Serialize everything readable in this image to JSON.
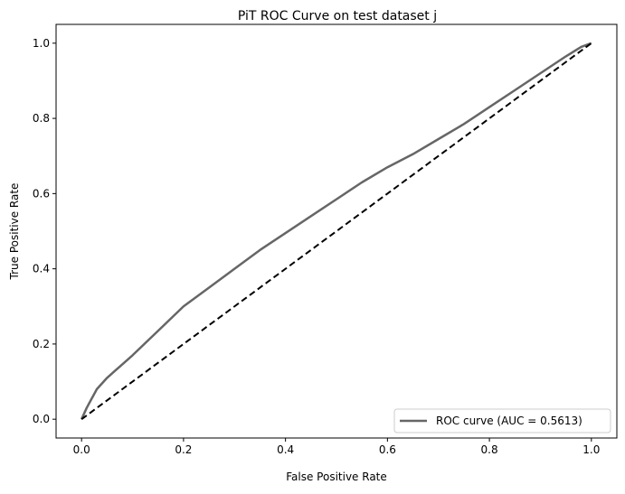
{
  "chart_data": {
    "type": "line",
    "title": "PiT ROC Curve on test dataset j",
    "xlabel": "False Positive Rate",
    "ylabel": "True Positive Rate",
    "xlim": [
      -0.05,
      1.05
    ],
    "ylim": [
      -0.05,
      1.05
    ],
    "xticks": [
      0.0,
      0.2,
      0.4,
      0.6,
      0.8,
      1.0
    ],
    "yticks": [
      0.0,
      0.2,
      0.4,
      0.6,
      0.8,
      1.0
    ],
    "xtick_labels": [
      "0.0",
      "0.2",
      "0.4",
      "0.6",
      "0.8",
      "1.0"
    ],
    "ytick_labels": [
      "0.0",
      "0.2",
      "0.4",
      "0.6",
      "0.8",
      "1.0"
    ],
    "grid": false,
    "legend": {
      "position": "lower-right"
    },
    "series": [
      {
        "name": "ROC curve (AUC = 0.5613)",
        "color": "#666666",
        "style": "solid",
        "x": [
          0.0,
          0.01,
          0.02,
          0.03,
          0.05,
          0.075,
          0.1,
          0.15,
          0.2,
          0.25,
          0.3,
          0.35,
          0.4,
          0.45,
          0.5,
          0.55,
          0.6,
          0.65,
          0.7,
          0.75,
          0.8,
          0.85,
          0.9,
          0.95,
          0.98,
          1.0
        ],
        "y": [
          0.0,
          0.03,
          0.055,
          0.08,
          0.11,
          0.14,
          0.17,
          0.235,
          0.3,
          0.35,
          0.4,
          0.45,
          0.495,
          0.54,
          0.585,
          0.63,
          0.67,
          0.705,
          0.745,
          0.785,
          0.83,
          0.875,
          0.92,
          0.965,
          0.99,
          1.0
        ]
      },
      {
        "name": "",
        "color": "#000000",
        "style": "dashed",
        "x": [
          0.0,
          1.0
        ],
        "y": [
          0.0,
          1.0
        ]
      }
    ]
  }
}
